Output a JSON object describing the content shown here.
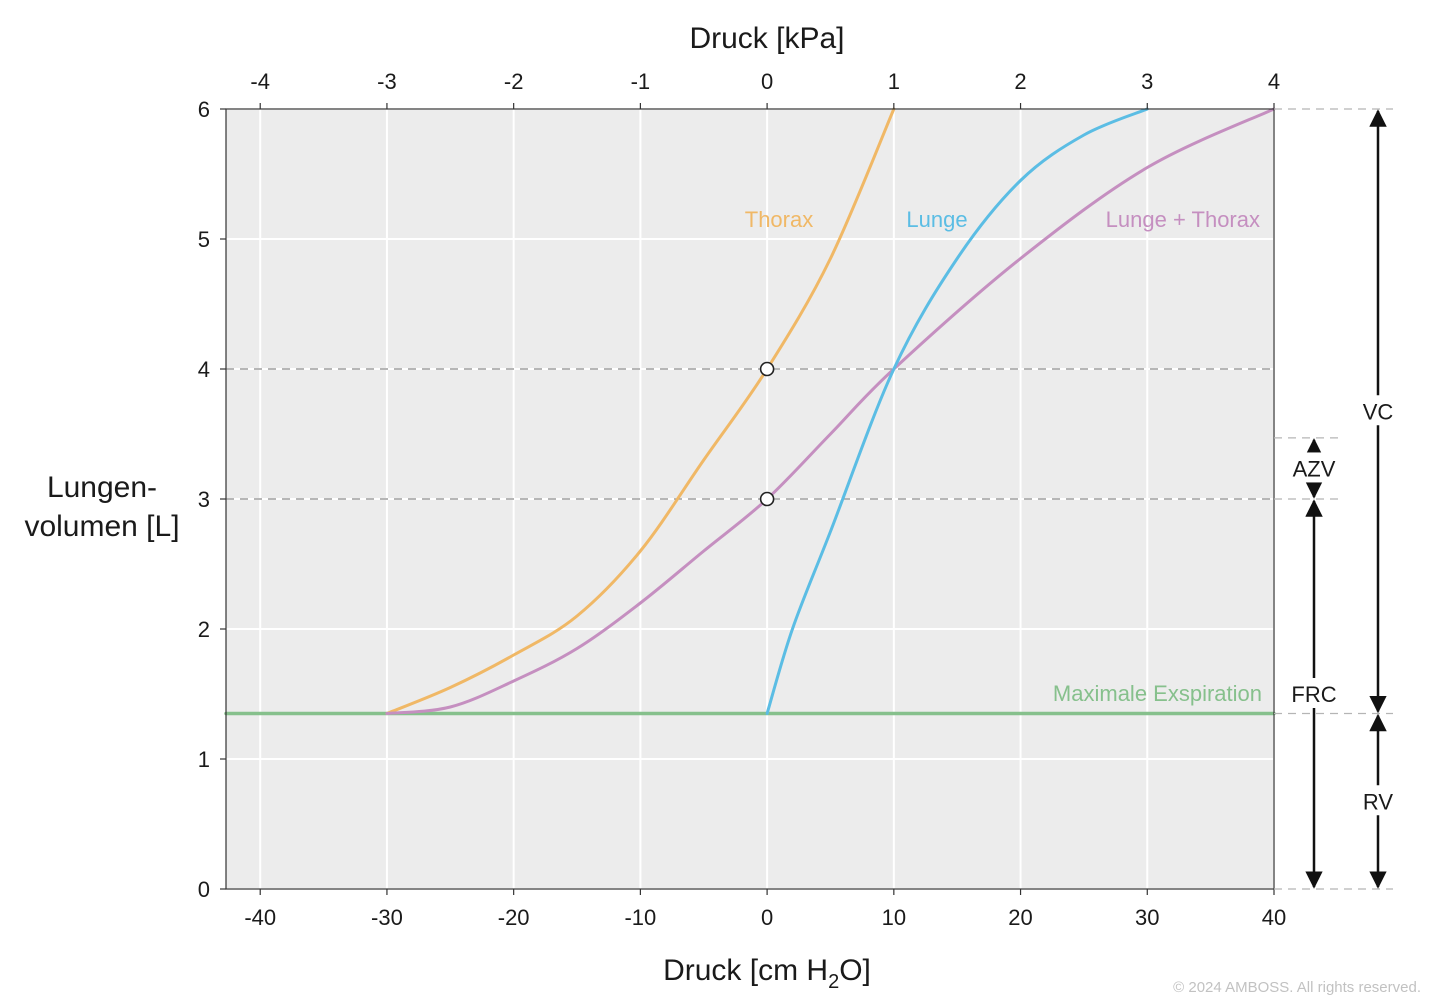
{
  "chart_data": {
    "type": "line",
    "title": "",
    "top_axis": {
      "label": "Druck [kPa]",
      "ticks": [
        "-4",
        "-3",
        "-2",
        "-1",
        "0",
        "1",
        "2",
        "3",
        "4"
      ]
    },
    "bottom_axis": {
      "label_main": "Druck [cm H",
      "label_sub": "2",
      "label_tail": "O]",
      "ticks": [
        "-40",
        "-30",
        "-20",
        "-10",
        "0",
        "10",
        "20",
        "30",
        "40"
      ],
      "xlim": [
        -42.7,
        40
      ]
    },
    "y_axis": {
      "label_line1": "Lungen-",
      "label_line2": "volumen [L]",
      "ticks": [
        "0",
        "1",
        "2",
        "3",
        "4",
        "5",
        "6"
      ],
      "ylim": [
        0,
        6
      ]
    },
    "grid": true,
    "series": [
      {
        "name": "Thorax",
        "color": "#f0b866",
        "points": [
          [
            -30,
            1.35
          ],
          [
            -25,
            1.55
          ],
          [
            -20,
            1.8
          ],
          [
            -15,
            2.1
          ],
          [
            -10,
            2.6
          ],
          [
            -5,
            3.3
          ],
          [
            0,
            4.0
          ],
          [
            5,
            4.85
          ],
          [
            10,
            6.0
          ]
        ]
      },
      {
        "name": "Lunge",
        "color": "#5bbde4",
        "points": [
          [
            0,
            1.35
          ],
          [
            2,
            2.0
          ],
          [
            5,
            2.75
          ],
          [
            10,
            4.0
          ],
          [
            15,
            4.85
          ],
          [
            20,
            5.45
          ],
          [
            25,
            5.8
          ],
          [
            30,
            6.0
          ]
        ]
      },
      {
        "name": "Lunge + Thorax",
        "color": "#c58fc0",
        "points": [
          [
            -30,
            1.35
          ],
          [
            -25,
            1.4
          ],
          [
            -20,
            1.6
          ],
          [
            -15,
            1.85
          ],
          [
            -10,
            2.2
          ],
          [
            -5,
            2.6
          ],
          [
            0,
            3.0
          ],
          [
            5,
            3.5
          ],
          [
            10,
            4.0
          ],
          [
            20,
            4.85
          ],
          [
            30,
            5.55
          ],
          [
            40,
            6.0
          ]
        ]
      },
      {
        "name": "Maximale Exspiration",
        "color": "#86c08c",
        "points": [
          [
            -42.7,
            1.35
          ],
          [
            40,
            1.35
          ]
        ]
      }
    ],
    "reference_lines": [
      4,
      3
    ],
    "markers": [
      [
        0,
        4
      ],
      [
        0,
        3
      ]
    ],
    "volumes": [
      {
        "label": "VC",
        "from": 1.35,
        "to": 6.0
      },
      {
        "label": "AZV",
        "from": 3.0,
        "to": 3.47
      },
      {
        "label": "FRC",
        "from": 0,
        "to": 3.0
      },
      {
        "label": "RV",
        "from": 0,
        "to": 1.35
      }
    ]
  },
  "copyright": "© 2024 AMBOSS. All rights reserved."
}
